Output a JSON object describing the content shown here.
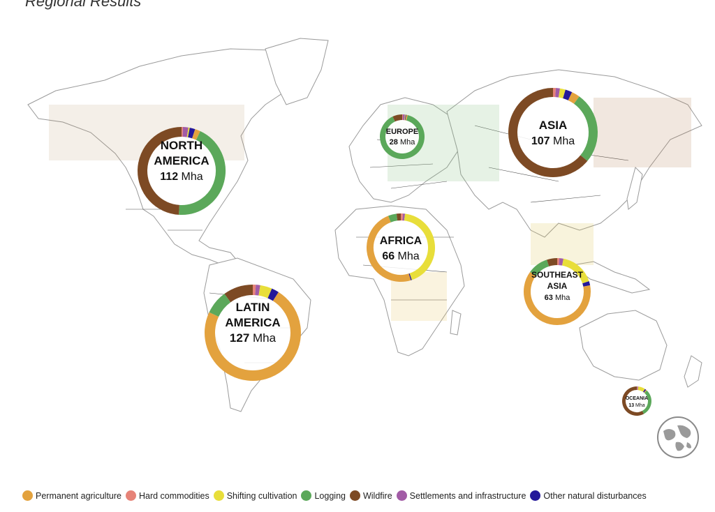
{
  "title": "Regional Results",
  "categories": [
    {
      "key": "permanent_agriculture",
      "label": "Permanent agriculture",
      "color": "#E3A23E"
    },
    {
      "key": "hard_commodities",
      "label": "Hard commodities",
      "color": "#E68378"
    },
    {
      "key": "shifting_cultivation",
      "label": "Shifting cultivation",
      "color": "#E8DE3A"
    },
    {
      "key": "logging",
      "label": "Logging",
      "color": "#5BA85A"
    },
    {
      "key": "wildfire",
      "label": "Wildfire",
      "color": "#7D4A24"
    },
    {
      "key": "settlements",
      "label": "Settlements and infrastructure",
      "color": "#A25CA6"
    },
    {
      "key": "other_natural",
      "label": "Other natural disturbances",
      "color": "#24189A"
    }
  ],
  "regions": [
    {
      "id": "north-america",
      "name_lines": [
        "NORTH",
        "AMERICA"
      ],
      "value": "112",
      "unit": "Mha",
      "shares": {
        "permanent_agriculture": 2,
        "hard_commodities": 0.5,
        "shifting_cultivation": 0.5,
        "logging": 44,
        "wildfire": 49,
        "settlements": 2,
        "other_natural": 2
      }
    },
    {
      "id": "latin-america",
      "name_lines": [
        "LATIN",
        "AMERICA"
      ],
      "value": "127",
      "unit": "Mha",
      "shares": {
        "permanent_agriculture": 73,
        "hard_commodities": 1,
        "shifting_cultivation": 4,
        "logging": 8,
        "wildfire": 10,
        "settlements": 1.5,
        "other_natural": 2.5
      }
    },
    {
      "id": "europe",
      "name_lines": [
        "EUROPE"
      ],
      "value": "28",
      "unit": "Mha",
      "shares": {
        "permanent_agriculture": 1,
        "hard_commodities": 0.5,
        "shifting_cultivation": 0.5,
        "logging": 89,
        "wildfire": 7,
        "settlements": 1.5,
        "other_natural": 0.5
      }
    },
    {
      "id": "africa",
      "name_lines": [
        "AFRICA"
      ],
      "value": "66",
      "unit": "Mha",
      "shares": {
        "permanent_agriculture": 49,
        "hard_commodities": 1,
        "shifting_cultivation": 43,
        "logging": 4,
        "wildfire": 2,
        "settlements": 1,
        "other_natural": 0.5
      }
    },
    {
      "id": "asia",
      "name_lines": [
        "ASIA"
      ],
      "value": "107",
      "unit": "Mha",
      "shares": {
        "permanent_agriculture": 3,
        "hard_commodities": 1,
        "shifting_cultivation": 2,
        "logging": 26,
        "wildfire": 64,
        "settlements": 1.5,
        "other_natural": 2.5
      }
    },
    {
      "id": "southeast-asia",
      "name_lines": [
        "SOUTHEAST",
        "ASIA"
      ],
      "value": "63",
      "unit": "Mha",
      "shares": {
        "permanent_agriculture": 63,
        "hard_commodities": 1,
        "shifting_cultivation": 17,
        "logging": 10,
        "wildfire": 5,
        "settlements": 2,
        "other_natural": 2
      }
    },
    {
      "id": "oceania",
      "name_lines": [
        "OCEANIA"
      ],
      "value": "13",
      "unit": "Mha",
      "shares": {
        "permanent_agriculture": 1,
        "hard_commodities": 0.5,
        "shifting_cultivation": 8,
        "logging": 30,
        "wildfire": 58,
        "settlements": 1,
        "other_natural": 1.5
      }
    }
  ],
  "icons": {
    "globe": "globe-icon"
  }
}
